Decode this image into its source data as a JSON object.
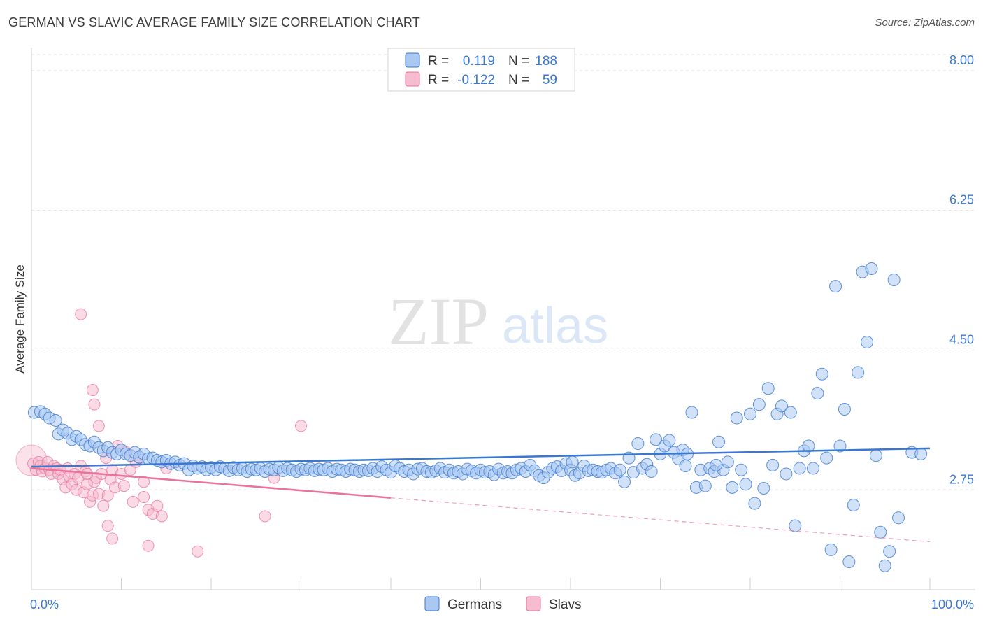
{
  "title": "GERMAN VS SLAVIC AVERAGE FAMILY SIZE CORRELATION CHART",
  "source": "Source: ZipAtlas.com",
  "watermark": {
    "zip": "ZIP",
    "atlas": "atlas"
  },
  "colors": {
    "german": "#3a78d0",
    "slav": "#e8739b",
    "german_fill": "#aac8f2",
    "slav_fill": "#f6bcd0",
    "axis_text": "#3a78d0"
  },
  "legend": {
    "r_label": "R =",
    "n_label": "N =",
    "rows": [
      {
        "series": "Germans",
        "r": "0.119",
        "n": "188"
      },
      {
        "series": "Slavs",
        "r": "-0.122",
        "n": "59"
      }
    ]
  },
  "bottom_legend": [
    "Germans",
    "Slavs"
  ],
  "chart_data": {
    "type": "scatter",
    "title": "GERMAN VS SLAVIC AVERAGE FAMILY SIZE CORRELATION CHART",
    "xlabel": "",
    "ylabel": "Average Family Size",
    "xlim": [
      0,
      100
    ],
    "ylim": [
      1.5,
      8.2
    ],
    "x_tick_labels": [
      "0.0%",
      "100.0%"
    ],
    "y_ticks": [
      2.75,
      4.5,
      6.25,
      8.0
    ],
    "y_tick_labels": [
      "2.75",
      "4.50",
      "6.25",
      "8.00"
    ],
    "series": [
      {
        "name": "Germans",
        "trend": {
          "x0": 0,
          "y0": 3.04,
          "x1": 100,
          "y1": 3.27,
          "dashed_from": 100
        },
        "points": [
          [
            0.3,
            3.72
          ],
          [
            1,
            3.73
          ],
          [
            1.5,
            3.7
          ],
          [
            2,
            3.65
          ],
          [
            2.7,
            3.62
          ],
          [
            3,
            3.45
          ],
          [
            3.5,
            3.5
          ],
          [
            4,
            3.46
          ],
          [
            4.5,
            3.38
          ],
          [
            5,
            3.42
          ],
          [
            5.5,
            3.38
          ],
          [
            6,
            3.32
          ],
          [
            6.5,
            3.3
          ],
          [
            7,
            3.35
          ],
          [
            7.5,
            3.28
          ],
          [
            8,
            3.24
          ],
          [
            8.5,
            3.28
          ],
          [
            9,
            3.22
          ],
          [
            9.5,
            3.2
          ],
          [
            10,
            3.25
          ],
          [
            10.5,
            3.2
          ],
          [
            11,
            3.18
          ],
          [
            11.5,
            3.22
          ],
          [
            12,
            3.16
          ],
          [
            12.5,
            3.2
          ],
          [
            13,
            3.14
          ],
          [
            13.5,
            3.15
          ],
          [
            14,
            3.12
          ],
          [
            14.5,
            3.1
          ],
          [
            15,
            3.12
          ],
          [
            15.5,
            3.08
          ],
          [
            16,
            3.1
          ],
          [
            16.5,
            3.06
          ],
          [
            17,
            3.08
          ],
          [
            17.5,
            3.0
          ],
          [
            18,
            3.05
          ],
          [
            18.5,
            3.02
          ],
          [
            19,
            3.04
          ],
          [
            19.5,
            3.0
          ],
          [
            20,
            3.03
          ],
          [
            20.5,
            3.0
          ],
          [
            21,
            3.04
          ],
          [
            21.5,
            3.02
          ],
          [
            22,
            2.99
          ],
          [
            22.5,
            3.03
          ],
          [
            23,
            3.0
          ],
          [
            23.5,
            3.02
          ],
          [
            24,
            2.98
          ],
          [
            24.5,
            3.01
          ],
          [
            25,
            3.0
          ],
          [
            25.5,
            3.02
          ],
          [
            26,
            2.98
          ],
          [
            26.5,
            3.01
          ],
          [
            27,
            3.0
          ],
          [
            27.5,
            3.03
          ],
          [
            28,
            2.99
          ],
          [
            28.5,
            3.02
          ],
          [
            29,
            3.0
          ],
          [
            29.5,
            2.98
          ],
          [
            30,
            3.01
          ],
          [
            30.5,
            3.0
          ],
          [
            31,
            3.02
          ],
          [
            31.5,
            2.99
          ],
          [
            32,
            3.01
          ],
          [
            32.5,
            3.0
          ],
          [
            33,
            3.02
          ],
          [
            33.5,
            2.98
          ],
          [
            34,
            3.01
          ],
          [
            34.5,
            3.0
          ],
          [
            35,
            2.98
          ],
          [
            35.5,
            3.01
          ],
          [
            36,
            3.0
          ],
          [
            36.5,
            2.98
          ],
          [
            37,
            3.0
          ],
          [
            37.5,
            2.99
          ],
          [
            38,
            3.02
          ],
          [
            38.5,
            2.98
          ],
          [
            39,
            3.04
          ],
          [
            39.5,
            3.0
          ],
          [
            40,
            2.97
          ],
          [
            40.5,
            3.05
          ],
          [
            41,
            3.02
          ],
          [
            41.5,
            2.98
          ],
          [
            42,
            3.0
          ],
          [
            42.5,
            2.95
          ],
          [
            43,
            3.01
          ],
          [
            43.5,
            3.02
          ],
          [
            44,
            2.98
          ],
          [
            44.5,
            2.97
          ],
          [
            45,
            2.99
          ],
          [
            45.5,
            3.02
          ],
          [
            46,
            2.97
          ],
          [
            46.5,
            3.0
          ],
          [
            47,
            2.96
          ],
          [
            47.5,
            2.98
          ],
          [
            48,
            2.95
          ],
          [
            48.5,
            3.01
          ],
          [
            49,
            2.99
          ],
          [
            49.5,
            2.96
          ],
          [
            50,
            3.0
          ],
          [
            50.5,
            2.97
          ],
          [
            51,
            2.98
          ],
          [
            51.5,
            2.94
          ],
          [
            52,
            3.01
          ],
          [
            52.5,
            2.96
          ],
          [
            53,
            2.98
          ],
          [
            53.5,
            2.96
          ],
          [
            54,
            3.0
          ],
          [
            54.5,
            3.02
          ],
          [
            55,
            2.98
          ],
          [
            55.5,
            3.06
          ],
          [
            56,
            2.99
          ],
          [
            56.5,
            2.93
          ],
          [
            57,
            2.9
          ],
          [
            57.5,
            2.97
          ],
          [
            58,
            3.02
          ],
          [
            58.5,
            3.04
          ],
          [
            59,
            2.99
          ],
          [
            59.5,
            3.08
          ],
          [
            60,
            3.0
          ],
          [
            60.5,
            2.93
          ],
          [
            61,
            2.96
          ],
          [
            61.5,
            3.05
          ],
          [
            62,
            2.99
          ],
          [
            62.5,
            3.0
          ],
          [
            63,
            2.98
          ],
          [
            63.5,
            2.97
          ],
          [
            64,
            3.0
          ],
          [
            64.5,
            3.02
          ],
          [
            65,
            2.96
          ],
          [
            65.5,
            3.0
          ],
          [
            66,
            2.85
          ],
          [
            66.5,
            3.15
          ],
          [
            67,
            2.97
          ],
          [
            67.5,
            3.33
          ],
          [
            68,
            3.02
          ],
          [
            68.5,
            3.07
          ],
          [
            69,
            2.98
          ],
          [
            69.5,
            3.38
          ],
          [
            70,
            3.2
          ],
          [
            70.5,
            3.3
          ],
          [
            71,
            3.37
          ],
          [
            71.5,
            3.22
          ],
          [
            72,
            3.14
          ],
          [
            72.5,
            3.25
          ],
          [
            73,
            3.2
          ],
          [
            73.5,
            3.72
          ],
          [
            74,
            2.78
          ],
          [
            74.5,
            3.0
          ],
          [
            75,
            2.8
          ],
          [
            75.5,
            3.02
          ],
          [
            76,
            2.98
          ],
          [
            76.5,
            3.35
          ],
          [
            77,
            3.0
          ],
          [
            77.5,
            3.1
          ],
          [
            78,
            2.78
          ],
          [
            78.5,
            3.65
          ],
          [
            79,
            3.0
          ],
          [
            79.5,
            2.82
          ],
          [
            80,
            3.7
          ],
          [
            80.5,
            2.58
          ],
          [
            81,
            3.82
          ],
          [
            81.5,
            2.77
          ],
          [
            82,
            4.02
          ],
          [
            82.5,
            3.06
          ],
          [
            83,
            3.7
          ],
          [
            83.5,
            3.8
          ],
          [
            84,
            2.95
          ],
          [
            84.5,
            3.72
          ],
          [
            85,
            2.3
          ],
          [
            85.5,
            3.02
          ],
          [
            86,
            3.24
          ],
          [
            86.5,
            3.3
          ],
          [
            87,
            3.02
          ],
          [
            87.5,
            3.96
          ],
          [
            88,
            4.2
          ],
          [
            88.5,
            3.15
          ],
          [
            89,
            2.0
          ],
          [
            89.5,
            5.3
          ],
          [
            90,
            3.3
          ],
          [
            90.5,
            3.76
          ],
          [
            91,
            1.85
          ],
          [
            91.5,
            2.56
          ],
          [
            92,
            4.22
          ],
          [
            92.5,
            5.48
          ],
          [
            93,
            4.6
          ],
          [
            93.5,
            5.52
          ],
          [
            94,
            3.18
          ],
          [
            94.5,
            2.22
          ],
          [
            95,
            1.8
          ],
          [
            95.5,
            1.98
          ],
          [
            96,
            5.38
          ],
          [
            96.5,
            2.4
          ],
          [
            98,
            3.22
          ],
          [
            99,
            3.2
          ],
          [
            72.8,
            3.05
          ],
          [
            76.2,
            3.06
          ],
          [
            60.2,
            3.1
          ]
        ]
      },
      {
        "name": "Slavs",
        "trend": {
          "x0": 0,
          "y0": 3.02,
          "x1": 40,
          "y1": 2.65,
          "dashed_from": 40,
          "dash_x1": 100,
          "dash_y1": 2.1
        },
        "points": [
          [
            0.2,
            3.08
          ],
          [
            0.5,
            3.0
          ],
          [
            0.8,
            3.1
          ],
          [
            1,
            3.05
          ],
          [
            1.2,
            2.98
          ],
          [
            1.5,
            3.02
          ],
          [
            1.8,
            3.1
          ],
          [
            2,
            3.0
          ],
          [
            2.2,
            2.95
          ],
          [
            2.5,
            3.05
          ],
          [
            2.8,
            3.02
          ],
          [
            3,
            2.95
          ],
          [
            3.2,
            3.0
          ],
          [
            3.5,
            2.88
          ],
          [
            3.8,
            2.78
          ],
          [
            4,
            3.02
          ],
          [
            4.2,
            2.92
          ],
          [
            4.5,
            2.82
          ],
          [
            4.8,
            2.95
          ],
          [
            5,
            2.75
          ],
          [
            5.2,
            2.9
          ],
          [
            5.5,
            3.05
          ],
          [
            5.8,
            2.72
          ],
          [
            6,
            2.98
          ],
          [
            6.2,
            2.82
          ],
          [
            6.5,
            2.6
          ],
          [
            6.8,
            2.68
          ],
          [
            7,
            2.85
          ],
          [
            7.2,
            2.9
          ],
          [
            7.5,
            2.7
          ],
          [
            7.8,
            2.95
          ],
          [
            8,
            2.55
          ],
          [
            8.3,
            3.15
          ],
          [
            8.5,
            2.68
          ],
          [
            8.8,
            2.88
          ],
          [
            9,
            3.0
          ],
          [
            9.3,
            2.78
          ],
          [
            9.6,
            3.3
          ],
          [
            10,
            2.95
          ],
          [
            10.3,
            2.8
          ],
          [
            10.6,
            3.22
          ],
          [
            11,
            3.0
          ],
          [
            11.3,
            2.6
          ],
          [
            11.6,
            3.1
          ],
          [
            12,
            3.15
          ],
          [
            12.5,
            2.85
          ],
          [
            13,
            2.5
          ],
          [
            13.5,
            2.45
          ],
          [
            14,
            2.55
          ],
          [
            14.5,
            2.42
          ],
          [
            15,
            3.02
          ],
          [
            5.5,
            4.95
          ],
          [
            6.8,
            4.0
          ],
          [
            7,
            3.82
          ],
          [
            7.5,
            3.55
          ],
          [
            8.5,
            2.3
          ],
          [
            9,
            2.14
          ],
          [
            6.2,
            2.95
          ],
          [
            12.5,
            2.66
          ],
          [
            13,
            2.05
          ],
          [
            30,
            3.55
          ],
          [
            18.5,
            1.98
          ],
          [
            26,
            2.42
          ],
          [
            27,
            2.9
          ]
        ]
      }
    ]
  }
}
